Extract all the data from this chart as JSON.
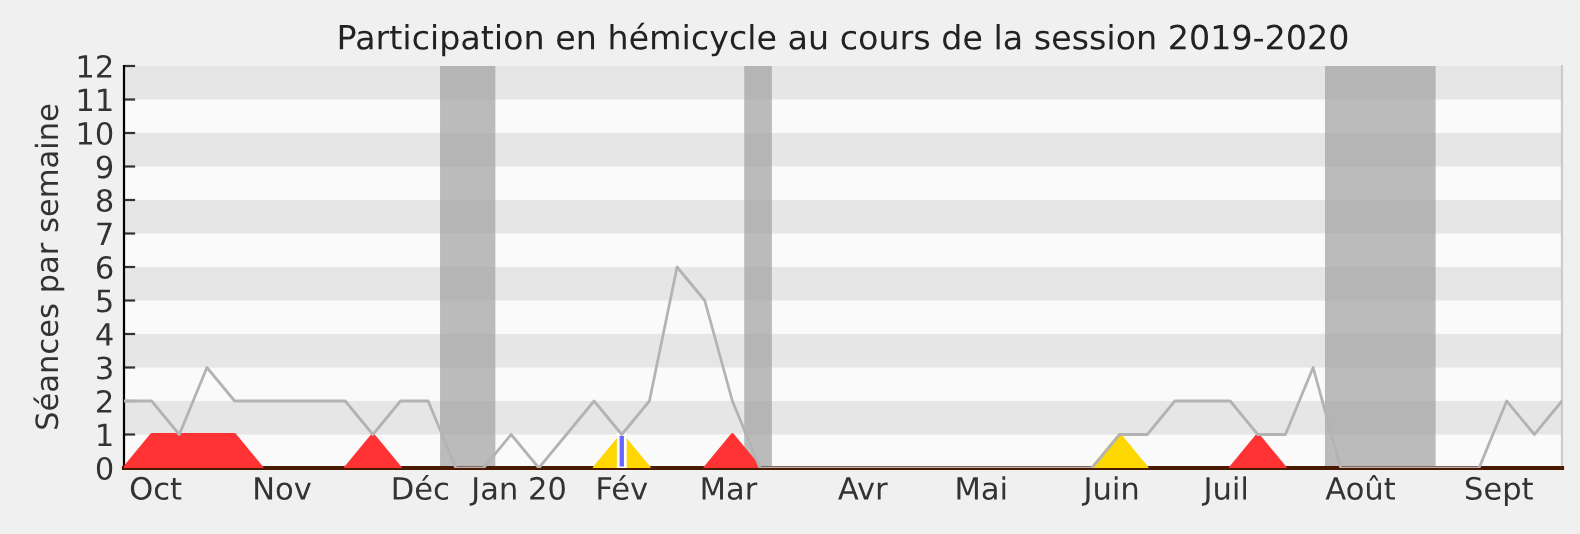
{
  "chart_data": {
    "type": "line",
    "title": "Participation en hémicycle au cours de la session 2019-2020",
    "ylabel": "Séances par semaine",
    "x": [
      "2019-09-30",
      "2019-10-07",
      "2019-10-14",
      "2019-10-21",
      "2019-10-28",
      "2019-11-04",
      "2019-11-11",
      "2019-11-18",
      "2019-11-25",
      "2019-12-02",
      "2019-12-09",
      "2019-12-16",
      "2019-12-23",
      "2019-12-30",
      "2020-01-06",
      "2020-01-13",
      "2020-01-20",
      "2020-01-27",
      "2020-02-03",
      "2020-02-10",
      "2020-02-17",
      "2020-02-24",
      "2020-03-02",
      "2020-03-09",
      "2020-03-16",
      "2020-03-23",
      "2020-03-30",
      "2020-04-06",
      "2020-04-13",
      "2020-04-20",
      "2020-04-27",
      "2020-05-04",
      "2020-05-11",
      "2020-05-18",
      "2020-05-25",
      "2020-06-01",
      "2020-06-08",
      "2020-06-15",
      "2020-06-22",
      "2020-06-29",
      "2020-07-06",
      "2020-07-13",
      "2020-07-20",
      "2020-07-27",
      "2020-08-03",
      "2020-08-10",
      "2020-08-17",
      "2020-08-24",
      "2020-08-31",
      "2020-09-07",
      "2020-09-14",
      "2020-09-21",
      "2020-09-28"
    ],
    "series": [
      {
        "type": "area",
        "color": "#ff3333",
        "values": [
          0,
          1,
          1,
          1,
          1,
          0,
          null,
          null,
          0,
          1,
          0,
          null,
          null,
          null,
          null,
          null,
          null,
          null,
          null,
          null,
          null,
          0,
          1,
          0,
          null,
          null,
          null,
          null,
          null,
          null,
          null,
          null,
          null,
          null,
          null,
          null,
          null,
          null,
          null,
          null,
          0,
          1,
          0,
          null,
          null,
          null,
          null,
          null,
          null,
          null,
          null,
          null,
          null
        ]
      },
      {
        "type": "area",
        "color": "#ffd700",
        "values": [
          null,
          null,
          null,
          null,
          null,
          null,
          null,
          null,
          null,
          null,
          null,
          null,
          null,
          null,
          null,
          null,
          null,
          0,
          1,
          0,
          null,
          null,
          null,
          null,
          null,
          null,
          null,
          null,
          null,
          null,
          null,
          null,
          null,
          null,
          null,
          0,
          1,
          0,
          null,
          null,
          null,
          null,
          null,
          null,
          null,
          null,
          null,
          null,
          null,
          null,
          null,
          null,
          null
        ]
      },
      {
        "type": "bar",
        "color": "#6666ff",
        "values": [
          null,
          null,
          null,
          null,
          null,
          null,
          null,
          null,
          null,
          null,
          null,
          null,
          null,
          null,
          null,
          null,
          null,
          null,
          1,
          null,
          null,
          null,
          null,
          null,
          null,
          null,
          null,
          null,
          null,
          null,
          null,
          null,
          null,
          null,
          null,
          null,
          null,
          null,
          null,
          null,
          null,
          null,
          null,
          null,
          null,
          null,
          null,
          null,
          null,
          null,
          null,
          null,
          null
        ]
      },
      {
        "color": "#b3b3b3",
        "values": [
          2,
          2,
          1,
          3,
          2,
          2,
          2,
          2,
          2,
          1,
          2,
          2,
          0,
          0,
          1,
          0,
          1,
          2,
          1,
          2,
          6,
          5,
          2,
          0,
          0,
          0,
          0,
          0,
          0,
          0,
          0,
          0,
          0,
          0,
          0,
          0,
          1,
          1,
          2,
          2,
          2,
          1,
          1,
          3,
          0,
          0,
          0,
          0,
          0,
          0,
          2,
          1,
          2
        ]
      }
    ],
    "xlim": [
      "2019-09-30",
      "2020-09-28"
    ],
    "ylim": [
      0,
      12
    ],
    "yticks": [
      0,
      1,
      2,
      3,
      4,
      5,
      6,
      7,
      8,
      9,
      10,
      11,
      12
    ],
    "xticks": [
      {
        "value": "2019-10-08",
        "label": "Oct"
      },
      {
        "value": "2019-11-09",
        "label": "Nov"
      },
      {
        "value": "2019-12-14",
        "label": "Déc"
      },
      {
        "value": "2020-01-08",
        "label": "Jan 20"
      },
      {
        "value": "2020-02-03",
        "label": "Fév"
      },
      {
        "value": "2020-03-01",
        "label": "Mar"
      },
      {
        "value": "2020-04-04",
        "label": "Avr"
      },
      {
        "value": "2020-05-04",
        "label": "Mai"
      },
      {
        "value": "2020-06-06",
        "label": "Juin"
      },
      {
        "value": "2020-07-05",
        "label": "Juil"
      },
      {
        "value": "2020-08-08",
        "label": "Août"
      },
      {
        "value": "2020-09-12",
        "label": "Sept"
      }
    ],
    "bands": [
      {
        "axis": "x",
        "from": "2019-12-19",
        "to": "2020-01-02",
        "color": "#a0a0a0"
      },
      {
        "axis": "x",
        "from": "2020-03-05",
        "to": "2020-03-12",
        "color": "#a0a0a0"
      },
      {
        "axis": "x",
        "from": "2020-07-30",
        "to": "2020-08-27",
        "color": "#a0a0a0"
      }
    ],
    "grid": false,
    "legend": false
  }
}
